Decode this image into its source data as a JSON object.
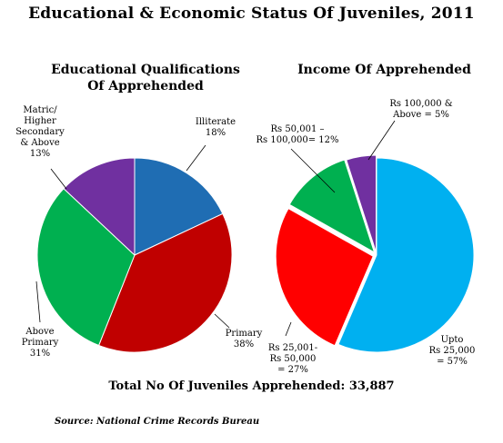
{
  "title": "Educational & Economic Status Of Juveniles, 2011",
  "total_text": "Total No Of Juveniles Apprehended: 33,887",
  "source_text": "Source: National Crime Records Bureau",
  "chart_data": [
    {
      "type": "pie",
      "title_lines": [
        "Educational Qualifications",
        "Of Apprehended"
      ],
      "slices": [
        {
          "label_lines": [
            "Illiterate",
            "18%"
          ],
          "value": 18,
          "color": "#1f6db3"
        },
        {
          "label_lines": [
            "Primary",
            "38%"
          ],
          "value": 38,
          "color": "#c00000"
        },
        {
          "label_lines": [
            "Above",
            "Primary",
            "31%"
          ],
          "value": 31,
          "color": "#00b050"
        },
        {
          "label_lines": [
            "Matric/",
            "Higher",
            "Secondary",
            "& Above",
            "13%"
          ],
          "value": 13,
          "color": "#7030a0"
        }
      ]
    },
    {
      "type": "pie",
      "title_lines": [
        "Income Of Apprehended"
      ],
      "slices": [
        {
          "label_lines": [
            "Upto",
            "Rs 25,000",
            "= 57%"
          ],
          "value": 57,
          "color": "#00b0f0"
        },
        {
          "label_lines": [
            "Rs 25,001-",
            "Rs 50,000",
            "= 27%"
          ],
          "value": 27,
          "color": "#ff0000"
        },
        {
          "label_lines": [
            "Rs 50,001 –",
            "Rs 100,000= 12%"
          ],
          "value": 12,
          "color": "#00b050"
        },
        {
          "label_lines": [
            "Rs 100,000 &",
            "Above = 5%"
          ],
          "value": 5,
          "color": "#7030a0"
        }
      ]
    }
  ]
}
